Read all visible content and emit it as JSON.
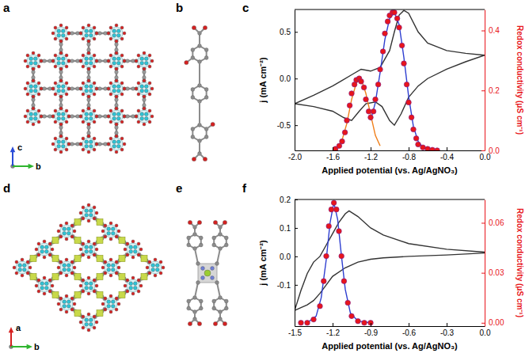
{
  "panels": [
    {
      "label": "a",
      "axes": [
        "c",
        "b"
      ]
    },
    {
      "label": "b"
    },
    {
      "label": "c"
    },
    {
      "label": "d",
      "axes": [
        "a",
        "b"
      ]
    },
    {
      "label": "e"
    },
    {
      "label": "f"
    }
  ],
  "chart_data": [
    {
      "type": "line",
      "x_label": "Applied potential (vs. Ag/AgNO₃)",
      "y_label": "j (mA cm⁻²)",
      "y2_label": "Redox conductivity (μS cm⁻¹)",
      "xlim": [
        -2.0,
        0.0
      ],
      "xticks": [
        {
          "value": -2.0,
          "label": "-2.0"
        },
        -1.6,
        -1.2,
        -0.8,
        -0.4,
        {
          "value": 0,
          "label": "0.0"
        }
      ],
      "ylim": [
        -0.77,
        0.74
      ],
      "yticks": [
        -0.5,
        {
          "value": 0,
          "label": "0.0"
        },
        0.5
      ],
      "y2lim": [
        0,
        0.47
      ],
      "y2ticks": [
        {
          "value": 0,
          "label": "0.0"
        },
        0.2,
        0.4
      ],
      "grid": false,
      "series": [
        {
          "type": "line",
          "color": "#333333",
          "line_style": "solid",
          "x": [
            0.0,
            -0.2,
            -0.4,
            -0.6,
            -0.7,
            -0.8,
            -0.88,
            -0.95,
            -1.0,
            -1.08,
            -1.15,
            -1.25,
            -1.32,
            -1.4,
            -1.48,
            -1.6,
            -1.8,
            -2.0,
            -1.8,
            -1.6,
            -1.5,
            -1.4,
            -1.3,
            -1.2,
            -1.1,
            -1.0,
            -0.95,
            -0.9,
            -0.85,
            -0.8,
            -0.7,
            -0.6,
            -0.4,
            -0.2,
            0.0
          ],
          "values": [
            0.25,
            0.18,
            0.1,
            0.0,
            -0.08,
            -0.2,
            -0.38,
            -0.5,
            -0.45,
            -0.3,
            -0.25,
            -0.27,
            -0.35,
            -0.45,
            -0.42,
            -0.35,
            -0.3,
            -0.27,
            -0.18,
            -0.08,
            -0.02,
            0.04,
            0.1,
            0.08,
            0.12,
            0.3,
            0.5,
            0.68,
            0.73,
            0.7,
            0.5,
            0.38,
            0.3,
            0.27,
            0.25
          ]
        },
        {
          "type": "line",
          "axis": "y2",
          "color": "#f07f1a",
          "line_style": "solid",
          "x": [
            -1.6,
            -1.55,
            -1.5,
            -1.45,
            -1.4,
            -1.35,
            -1.32,
            -1.28,
            -1.25,
            -1.2,
            -1.15,
            -1.1
          ],
          "values": [
            0.0,
            0.01,
            0.035,
            0.09,
            0.17,
            0.225,
            0.24,
            0.22,
            0.19,
            0.12,
            0.05,
            0.015
          ]
        },
        {
          "type": "line",
          "axis": "y2",
          "color": "#2f3fd0",
          "line_style": "solid",
          "x": [
            -1.2,
            -1.15,
            -1.1,
            -1.05,
            -1.0,
            -0.95,
            -0.9,
            -0.85,
            -0.8,
            -0.75,
            -0.7,
            -0.65,
            -0.6
          ],
          "values": [
            0.1,
            0.16,
            0.26,
            0.37,
            0.44,
            0.46,
            0.42,
            0.31,
            0.18,
            0.08,
            0.03,
            0.01,
            0.0
          ]
        },
        {
          "type": "scatter",
          "axis": "y2",
          "color": "#e8151b",
          "marker": "circle",
          "x": [
            -1.57,
            -1.53,
            -1.5,
            -1.47,
            -1.45,
            -1.42,
            -1.4,
            -1.37,
            -1.35,
            -1.32,
            -1.3,
            -1.27,
            -1.25,
            -1.22,
            -1.2,
            -1.17,
            -1.15,
            -1.12,
            -1.1,
            -1.07,
            -1.05,
            -1.02,
            -1.0,
            -0.97,
            -0.95,
            -0.92,
            -0.9,
            -0.87,
            -0.85,
            -0.82,
            -0.8,
            -0.77,
            -0.75,
            -0.72,
            -0.7,
            -0.65,
            -0.6,
            -0.55,
            -0.5
          ],
          "values": [
            0.005,
            0.015,
            0.03,
            0.06,
            0.1,
            0.15,
            0.19,
            0.22,
            0.235,
            0.24,
            0.23,
            0.21,
            0.17,
            0.13,
            0.11,
            0.13,
            0.17,
            0.22,
            0.27,
            0.33,
            0.39,
            0.43,
            0.45,
            0.46,
            0.46,
            0.44,
            0.41,
            0.35,
            0.29,
            0.22,
            0.16,
            0.11,
            0.07,
            0.04,
            0.02,
            0.01,
            0.005,
            0.002,
            0.0
          ]
        }
      ]
    },
    {
      "type": "line",
      "x_label": "Applied potential (vs. Ag/AgNO₃)",
      "y_label": "j (mA cm⁻²)",
      "y2_label": "Redox conductivity (μS cm⁻¹)",
      "xlim": [
        -1.5,
        0.0
      ],
      "xticks": [
        -1.5,
        -1.2,
        -0.9,
        -0.6,
        -0.3,
        {
          "value": 0,
          "label": "0.0"
        }
      ],
      "ylim": [
        -0.245,
        0.2
      ],
      "yticks": [
        -0.1,
        {
          "value": 0,
          "label": "0.0"
        },
        0.1,
        0.2
      ],
      "y2lim": [
        -0.002,
        0.074
      ],
      "y2ticks": [
        {
          "value": 0,
          "label": "0.00"
        },
        0.03,
        0.06
      ],
      "grid": false,
      "series": [
        {
          "type": "line",
          "color": "#333333",
          "line_style": "solid",
          "x": [
            0.0,
            -0.3,
            -0.6,
            -0.8,
            -0.9,
            -1.0,
            -1.1,
            -1.2,
            -1.25,
            -1.3,
            -1.35,
            -1.4,
            -1.45,
            -1.5,
            -1.45,
            -1.4,
            -1.35,
            -1.3,
            -1.25,
            -1.2,
            -1.15,
            -1.1,
            -1.07,
            -1.0,
            -0.9,
            -0.8,
            -0.6,
            -0.3,
            0.0
          ],
          "values": [
            0.012,
            0.005,
            0.0,
            -0.005,
            -0.01,
            -0.02,
            -0.04,
            -0.07,
            -0.1,
            -0.13,
            -0.155,
            -0.17,
            -0.18,
            -0.19,
            -0.12,
            -0.06,
            -0.02,
            0.0,
            0.04,
            0.08,
            0.12,
            0.15,
            0.16,
            0.14,
            0.1,
            0.075,
            0.045,
            0.025,
            0.015
          ]
        },
        {
          "type": "line",
          "axis": "y2",
          "color": "#2f3fd0",
          "line_style": "solid",
          "x": [
            -1.4,
            -1.33,
            -1.29,
            -1.25,
            -1.22,
            -1.19,
            -1.16,
            -1.13,
            -1.1,
            -1.06,
            -1.0,
            -0.9
          ],
          "values": [
            0,
            0.004,
            0.015,
            0.038,
            0.06,
            0.072,
            0.062,
            0.04,
            0.02,
            0.006,
            0.001,
            0
          ]
        },
        {
          "type": "scatter",
          "axis": "y2",
          "color": "#e8151b",
          "marker": "circle",
          "x": [
            -1.45,
            -1.4,
            -1.35,
            -1.3,
            -1.27,
            -1.25,
            -1.23,
            -1.21,
            -1.19,
            -1.17,
            -1.15,
            -1.13,
            -1.11,
            -1.08,
            -1.05,
            -1.0,
            -0.95,
            -0.9
          ],
          "values": [
            0,
            0,
            0.002,
            0.01,
            0.025,
            0.04,
            0.058,
            0.068,
            0.072,
            0.068,
            0.055,
            0.04,
            0.025,
            0.012,
            0.004,
            0.001,
            0,
            0
          ]
        }
      ]
    }
  ]
}
